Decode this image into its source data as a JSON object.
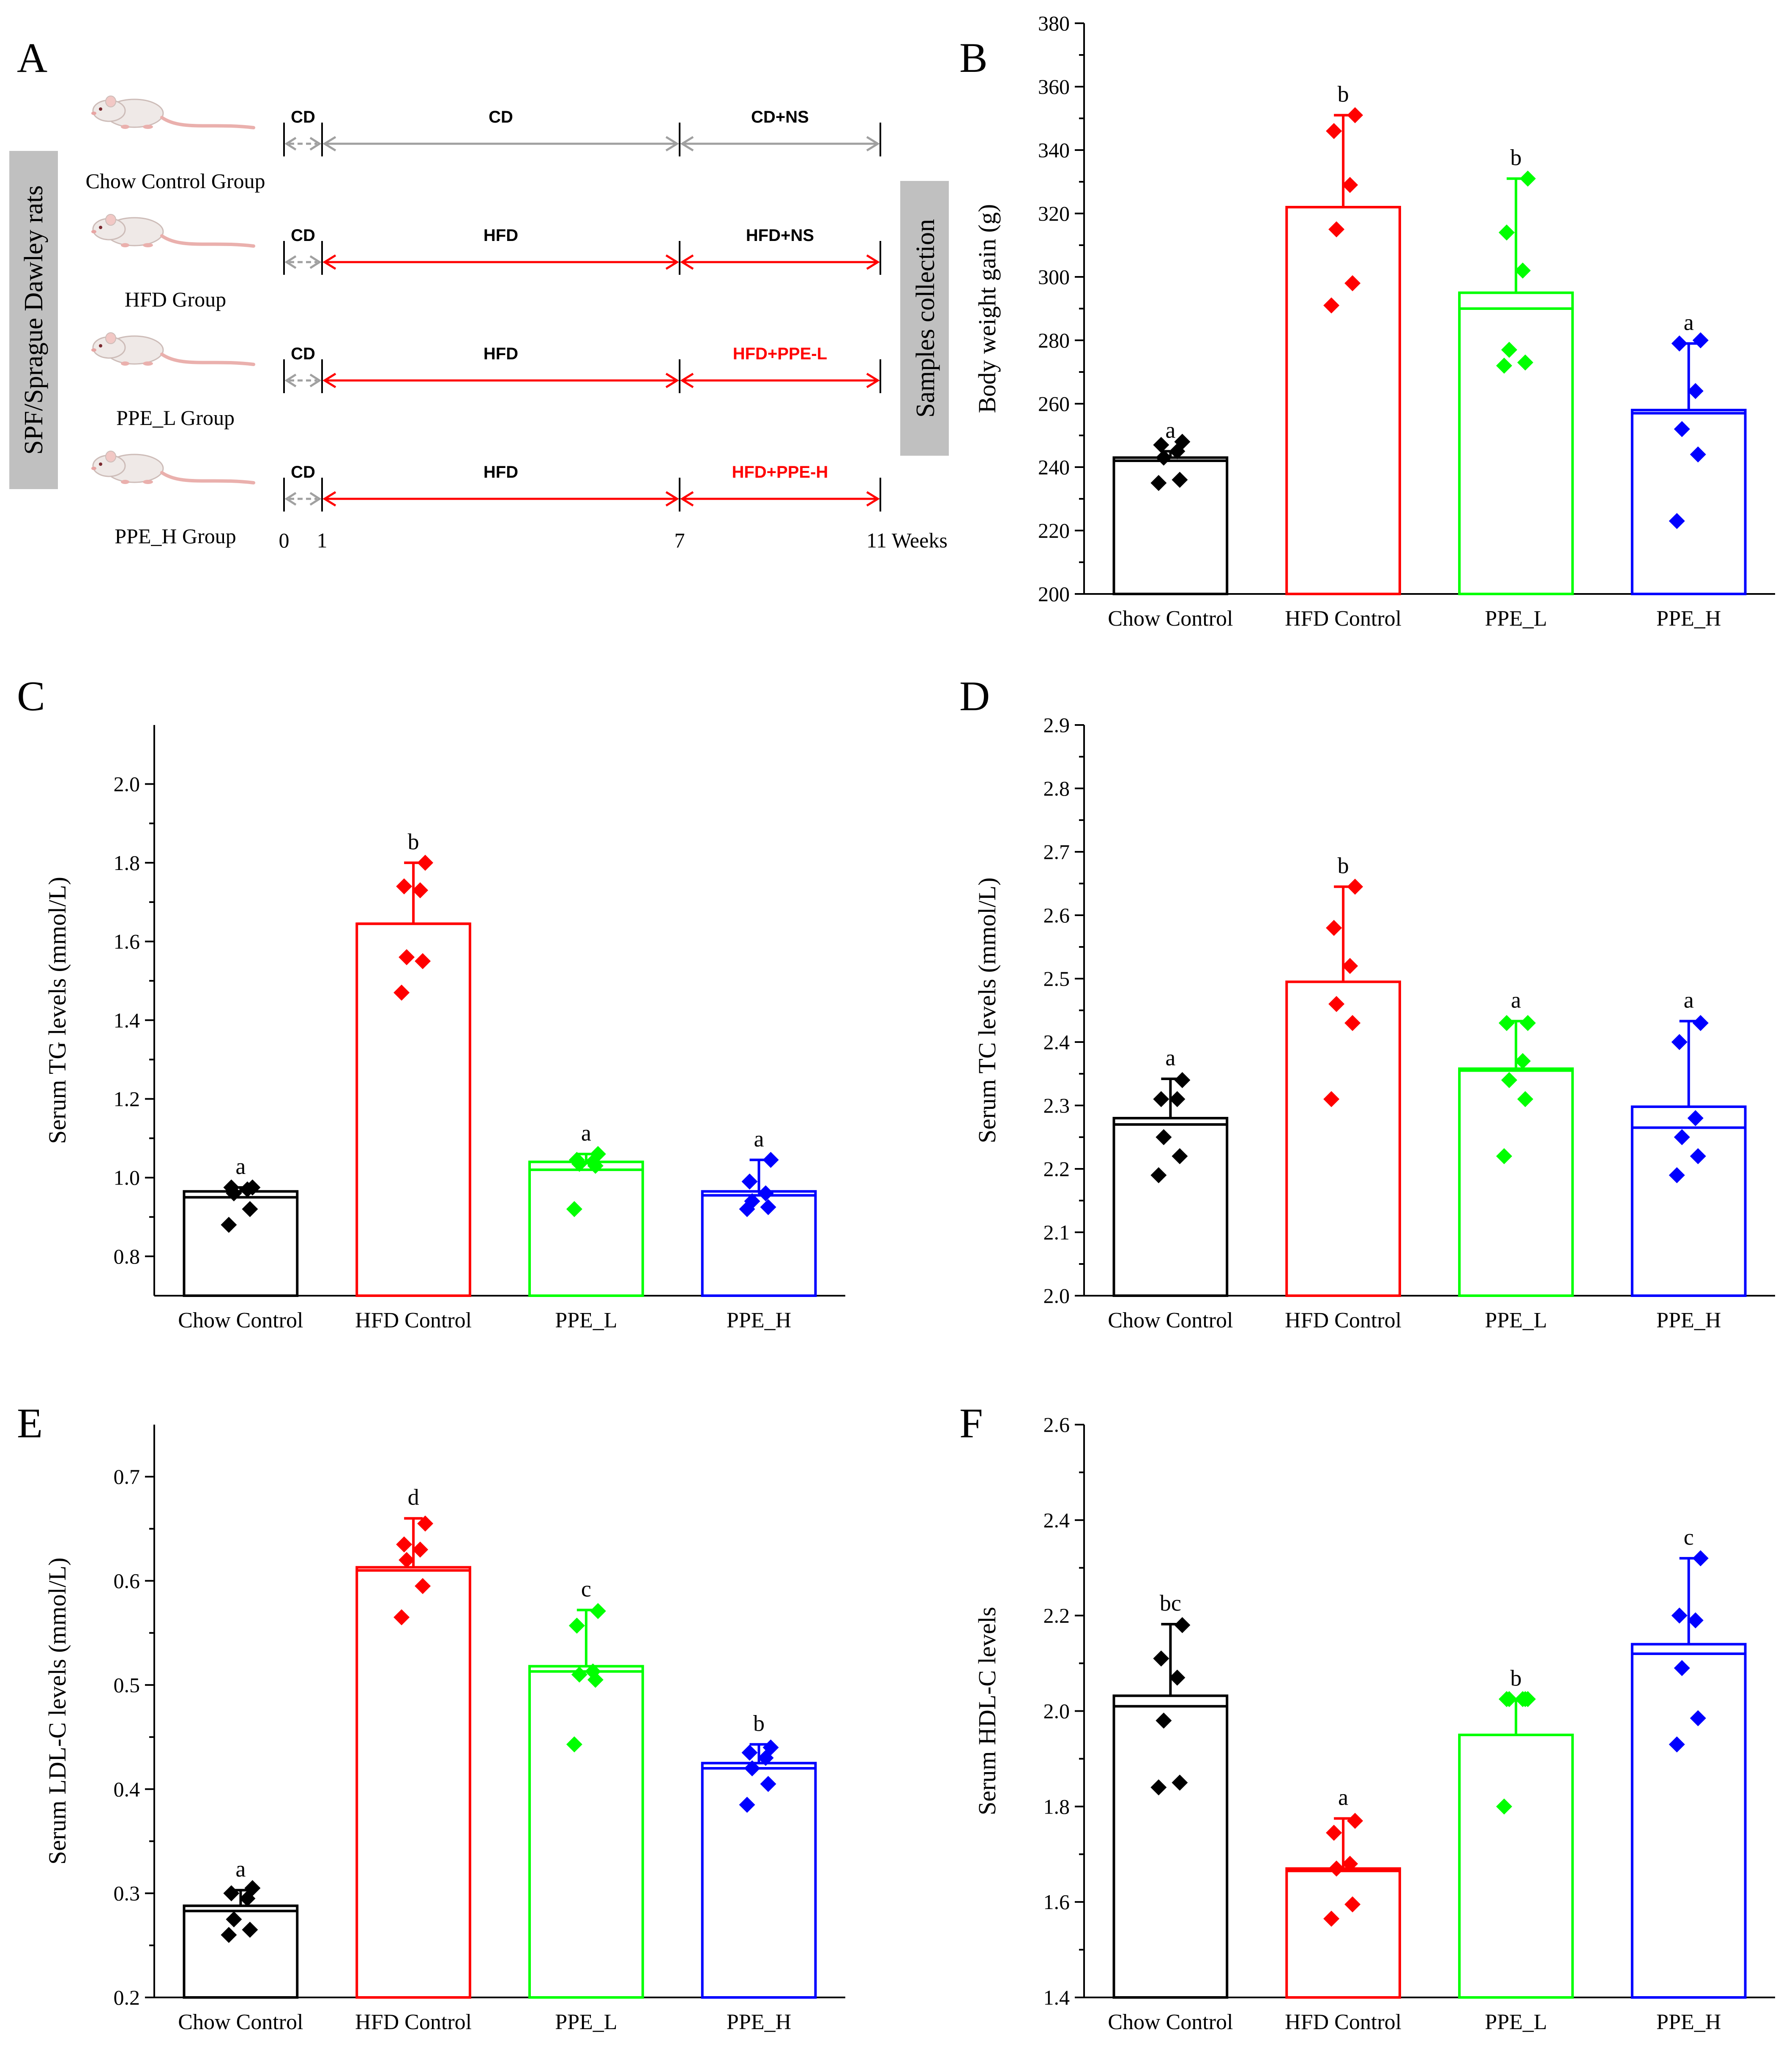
{
  "panel_a": {
    "label": "A",
    "side_label": "SPF/Sprague Dawley rats",
    "samples_label": "Samples collection",
    "groups": [
      {
        "name": "Chow Control Group",
        "seg1": "CD",
        "seg2": "CD",
        "seg3": "CD+NS",
        "color": "#a0a0a0",
        "label_color": "#000000"
      },
      {
        "name": "HFD Group",
        "seg1": "CD",
        "seg2": "HFD",
        "seg3": "HFD+NS",
        "color": "#ff0000",
        "label_color": "#000000"
      },
      {
        "name": "PPE_L Group",
        "seg1": "CD",
        "seg2": "HFD",
        "seg3": "HFD+PPE-L",
        "color": "#ff0000",
        "label_color": "#ff0000"
      },
      {
        "name": "PPE_H Group",
        "seg1": "CD",
        "seg2": "HFD",
        "seg3": "HFD+PPE-H",
        "color": "#ff0000",
        "label_color": "#ff0000"
      }
    ],
    "timeline_ticks": [
      "0",
      "1",
      "7",
      "11 Weeks"
    ]
  },
  "chart_data": [
    {
      "panel": "B",
      "type": "bar",
      "ylabel": "Body weight gain (g)",
      "ylim": [
        200,
        380
      ],
      "yticks": [
        200,
        220,
        240,
        260,
        280,
        300,
        320,
        340,
        360,
        380
      ],
      "categories": [
        "Chow Control",
        "HFD Control",
        "PPE_L",
        "PPE_H"
      ],
      "colors": [
        "#000000",
        "#ff0000",
        "#00ff00",
        "#0000ff"
      ],
      "means": [
        243,
        322,
        295,
        258
      ],
      "medians": [
        242,
        322,
        290,
        257
      ],
      "errors": [
        2,
        29,
        36,
        21
      ],
      "points": [
        [
          235,
          236,
          243,
          245,
          247,
          248
        ],
        [
          291,
          298,
          315,
          329,
          346,
          351
        ],
        [
          272,
          273,
          277,
          302,
          314,
          331
        ],
        [
          223,
          244,
          252,
          264,
          279,
          280
        ]
      ],
      "letters": [
        "a",
        "b",
        "b",
        "a"
      ]
    },
    {
      "panel": "C",
      "type": "bar",
      "ylabel": "Serum TG levels (mmol/L)",
      "ylim": [
        0.7,
        2.15
      ],
      "yticks": [
        0.8,
        1.0,
        1.2,
        1.4,
        1.6,
        1.8,
        2.0
      ],
      "categories": [
        "Chow Control",
        "HFD Control",
        "PPE_L",
        "PPE_H"
      ],
      "colors": [
        "#000000",
        "#ff0000",
        "#00ff00",
        "#0000ff"
      ],
      "means": [
        0.965,
        1.645,
        1.04,
        0.965
      ],
      "medians": [
        0.95,
        1.645,
        1.02,
        0.955
      ],
      "errors": [
        0.01,
        0.155,
        0.02,
        0.08
      ],
      "points": [
        [
          0.88,
          0.92,
          0.96,
          0.97,
          0.975,
          0.975
        ],
        [
          1.47,
          1.55,
          1.56,
          1.73,
          1.74,
          1.8
        ],
        [
          0.92,
          1.03,
          1.035,
          1.04,
          1.045,
          1.06
        ],
        [
          0.92,
          0.925,
          0.94,
          0.96,
          0.99,
          1.045
        ]
      ],
      "letters": [
        "a",
        "b",
        "a",
        "a"
      ]
    },
    {
      "panel": "D",
      "type": "bar",
      "ylabel": "Serum TC levels (mmol/L)",
      "ylim": [
        2.0,
        2.9
      ],
      "yticks": [
        2.0,
        2.1,
        2.2,
        2.3,
        2.4,
        2.5,
        2.6,
        2.7,
        2.8,
        2.9
      ],
      "categories": [
        "Chow Control",
        "HFD Control",
        "PPE_L",
        "PPE_H"
      ],
      "colors": [
        "#000000",
        "#ff0000",
        "#00ff00",
        "#0000ff"
      ],
      "means": [
        2.28,
        2.495,
        2.358,
        2.298
      ],
      "medians": [
        2.27,
        2.495,
        2.355,
        2.265
      ],
      "errors": [
        0.062,
        0.15,
        0.075,
        0.135
      ],
      "points": [
        [
          2.19,
          2.22,
          2.25,
          2.31,
          2.31,
          2.34
        ],
        [
          2.31,
          2.43,
          2.46,
          2.52,
          2.58,
          2.645
        ],
        [
          2.22,
          2.31,
          2.34,
          2.37,
          2.43,
          2.43
        ],
        [
          2.19,
          2.22,
          2.25,
          2.28,
          2.4,
          2.43
        ]
      ],
      "letters": [
        "a",
        "b",
        "a",
        "a"
      ]
    },
    {
      "panel": "E",
      "type": "bar",
      "ylabel": "Serum LDL-C levels (mmol/L)",
      "ylim": [
        0.2,
        0.75
      ],
      "yticks": [
        0.2,
        0.3,
        0.4,
        0.5,
        0.6,
        0.7
      ],
      "categories": [
        "Chow Control",
        "HFD Control",
        "PPE_L",
        "PPE_H"
      ],
      "colors": [
        "#000000",
        "#ff0000",
        "#00ff00",
        "#0000ff"
      ],
      "means": [
        0.288,
        0.613,
        0.518,
        0.425
      ],
      "medians": [
        0.283,
        0.61,
        0.513,
        0.42
      ],
      "errors": [
        0.015,
        0.047,
        0.054,
        0.018
      ],
      "points": [
        [
          0.26,
          0.265,
          0.275,
          0.295,
          0.3,
          0.305
        ],
        [
          0.565,
          0.595,
          0.62,
          0.63,
          0.635,
          0.655
        ],
        [
          0.443,
          0.505,
          0.51,
          0.513,
          0.557,
          0.571
        ],
        [
          0.385,
          0.405,
          0.42,
          0.43,
          0.435,
          0.44
        ]
      ],
      "letters": [
        "a",
        "d",
        "c",
        "b"
      ]
    },
    {
      "panel": "F",
      "type": "bar",
      "ylabel": "Serum HDL-C levels",
      "ylim": [
        1.4,
        2.6
      ],
      "yticks": [
        1.4,
        1.6,
        1.8,
        2.0,
        2.2,
        2.4,
        2.6
      ],
      "categories": [
        "Chow Control",
        "HFD Control",
        "PPE_L",
        "PPE_H"
      ],
      "colors": [
        "#000000",
        "#ff0000",
        "#00ff00",
        "#0000ff"
      ],
      "means": [
        2.032,
        1.67,
        1.95,
        2.14
      ],
      "medians": [
        2.01,
        1.665,
        1.95,
        2.12
      ],
      "errors": [
        0.15,
        0.105,
        0.075,
        0.18
      ],
      "points": [
        [
          1.84,
          1.85,
          1.98,
          2.07,
          2.11,
          2.18
        ],
        [
          1.565,
          1.595,
          1.67,
          1.68,
          1.745,
          1.77
        ],
        [
          1.8,
          2.025,
          2.025,
          2.025,
          2.025,
          2.025
        ],
        [
          1.93,
          1.985,
          2.09,
          2.19,
          2.2,
          2.32
        ]
      ],
      "letters": [
        "bc",
        "a",
        "b",
        "c"
      ]
    }
  ]
}
